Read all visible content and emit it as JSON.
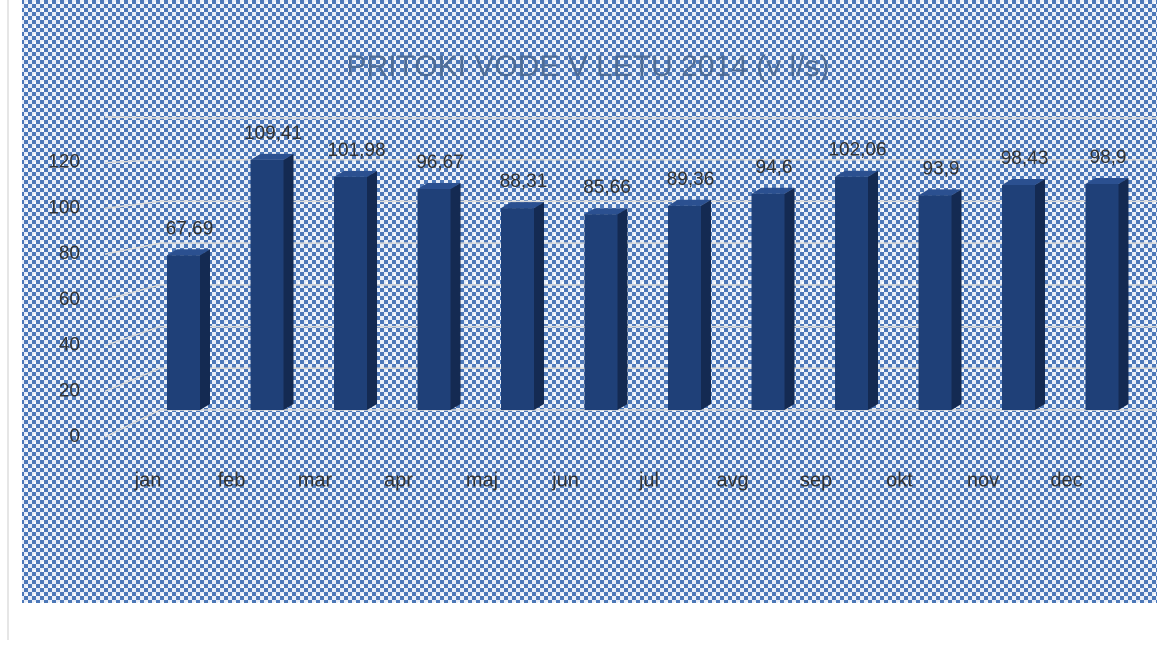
{
  "chart_data": {
    "type": "bar",
    "title": "PRITOKI VODE V LETU 2014 (v l/s)",
    "categories": [
      "jan",
      "feb",
      "mar",
      "apr",
      "maj",
      "jun",
      "jul",
      "avg",
      "sep",
      "okt",
      "nov",
      "dec"
    ],
    "values": [
      67.69,
      109.41,
      101.98,
      96.67,
      88.31,
      85.66,
      89.36,
      94.6,
      102.06,
      93.9,
      98.43,
      98.9
    ],
    "value_labels": [
      "67,69",
      "109,41",
      "101,98",
      "96,67",
      "88,31",
      "85,66",
      "89,36",
      "94,6",
      "102,06",
      "93,9",
      "98,43",
      "98,9"
    ],
    "color": "#1f4078",
    "ylim": [
      0,
      140
    ],
    "yticks": [
      0,
      20,
      40,
      60,
      80,
      100,
      120
    ],
    "grid": true
  }
}
